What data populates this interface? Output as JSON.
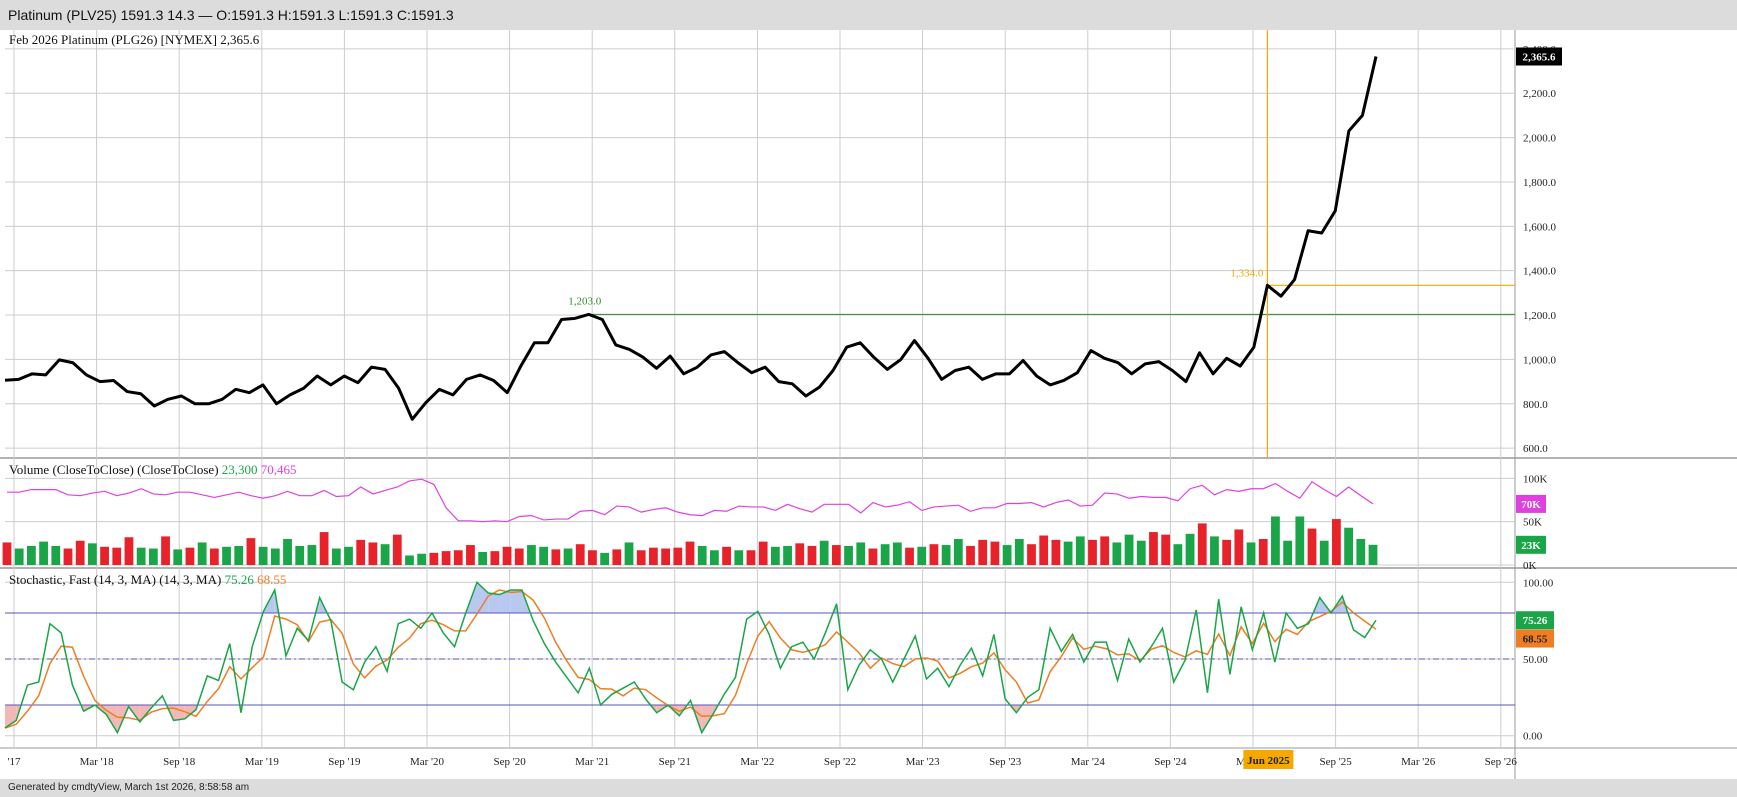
{
  "title_bar": "Platinum (PLV25) 1591.3 14.3 — O:1591.3 H:1591.3 L:1591.3 C:1591.3",
  "footer": "Generated by cmdtyView, March 1st 2026, 8:58:58 am",
  "colors": {
    "price_line": "#000000",
    "volume_up": "#1aa548",
    "volume_down": "#e8222a",
    "volume_ma": "#e040e0",
    "stoch_k": "#1aa548",
    "stoch_d": "#ef7d22",
    "stoch_overbought_fill": "#b8c8f0",
    "stoch_oversold_fill": "#f2b8b8",
    "gridline": "#cccccc",
    "crosshair": "#f6a800",
    "level_line": "#2e8b2e"
  },
  "chart_data": [
    {
      "type": "line",
      "title": "Feb 2026 Platinum (PLG26) [NYMEX] 2,365.6",
      "last_value_label": "2,365.6",
      "x_axis_labels": [
        "'17",
        "Mar '18",
        "Sep '18",
        "Mar '19",
        "Sep '19",
        "Mar '20",
        "Sep '20",
        "Mar '21",
        "Sep '21",
        "Mar '22",
        "Sep '22",
        "Mar '23",
        "Sep '23",
        "Mar '24",
        "Sep '24",
        "Mar '25",
        "Sep '25",
        "Mar '26",
        "Sep '26"
      ],
      "y_ticks": [
        "2,400.0",
        "2,200.0",
        "2,000.0",
        "1,800.0",
        "1,600.0",
        "1,400.0",
        "1,200.0",
        "1,000.0",
        "800.0",
        "600.0"
      ],
      "ylim": [
        560,
        2440
      ],
      "grid": true,
      "values": [
        906,
        910,
        935,
        930,
        998,
        985,
        930,
        900,
        905,
        855,
        845,
        790,
        820,
        835,
        800,
        800,
        820,
        865,
        850,
        885,
        800,
        840,
        870,
        925,
        885,
        925,
        895,
        965,
        955,
        870,
        730,
        805,
        865,
        840,
        910,
        930,
        905,
        850,
        970,
        1075,
        1075,
        1180,
        1185,
        1203,
        1180,
        1065,
        1045,
        1010,
        960,
        1015,
        935,
        965,
        1020,
        1035,
        985,
        940,
        965,
        900,
        890,
        835,
        875,
        950,
        1055,
        1075,
        1010,
        955,
        1000,
        1085,
        1005,
        910,
        950,
        965,
        910,
        935,
        935,
        995,
        925,
        885,
        905,
        940,
        1040,
        1005,
        985,
        935,
        980,
        990,
        950,
        900,
        1030,
        935,
        1005,
        970,
        1055,
        1334,
        1285,
        1360,
        1580,
        1570,
        1670,
        2030,
        2100,
        2365.6
      ],
      "annotations": [
        {
          "label": "1,203.0",
          "value": 1203,
          "note": "horizontal level line"
        },
        {
          "label": "1,334.0",
          "value": 1334,
          "note": "crosshair level at Jun 2025"
        }
      ],
      "crosshair_label": "Jun 2025"
    },
    {
      "type": "bar",
      "title": "Volume (CloseToClose) (CloseToClose)",
      "legend_values": [
        "23,300",
        "70,465"
      ],
      "y_ticks": [
        "100K",
        "50K",
        "0K"
      ],
      "ylim": [
        0,
        105000
      ],
      "last_value_labels": [
        "70K",
        "23K"
      ],
      "volume": [
        26000,
        19000,
        22000,
        27000,
        22000,
        19000,
        28000,
        25000,
        21000,
        20000,
        32000,
        20000,
        19000,
        33000,
        18000,
        20000,
        26000,
        19000,
        21000,
        22000,
        31000,
        21000,
        19000,
        30000,
        22000,
        23000,
        38000,
        19000,
        21000,
        29000,
        26000,
        24000,
        35000,
        11000,
        13000,
        14000,
        16000,
        17000,
        23000,
        15000,
        16000,
        21000,
        19000,
        23000,
        21000,
        18000,
        19000,
        24000,
        17000,
        14000,
        18000,
        26000,
        17000,
        20000,
        19000,
        20000,
        27000,
        22000,
        17000,
        21000,
        17000,
        17000,
        27000,
        21000,
        22000,
        25000,
        22000,
        28000,
        23000,
        22000,
        26000,
        19000,
        24000,
        26000,
        20000,
        21000,
        24000,
        23000,
        30000,
        22000,
        29000,
        27000,
        23000,
        30000,
        24000,
        34000,
        29000,
        27000,
        33000,
        29000,
        33000,
        26000,
        35000,
        28000,
        38000,
        35000,
        24000,
        36000,
        48000,
        33000,
        29000,
        41000,
        26000,
        30000,
        56000,
        28000,
        56000,
        42000,
        28000,
        53000,
        43000,
        30000,
        23300
      ],
      "volume_up": [
        false,
        true,
        true,
        true,
        true,
        false,
        false,
        true,
        false,
        false,
        false,
        true,
        true,
        false,
        true,
        false,
        true,
        false,
        true,
        true,
        false,
        true,
        true,
        true,
        true,
        true,
        false,
        true,
        true,
        false,
        false,
        true,
        false,
        true,
        true,
        false,
        false,
        false,
        false,
        true,
        false,
        false,
        false,
        true,
        true,
        false,
        true,
        false,
        false,
        true,
        false,
        true,
        false,
        false,
        false,
        false,
        false,
        true,
        true,
        false,
        true,
        false,
        false,
        true,
        true,
        false,
        false,
        true,
        false,
        true,
        true,
        false,
        true,
        true,
        false,
        true,
        false,
        true,
        true,
        false,
        false,
        false,
        true,
        true,
        false,
        false,
        false,
        true,
        true,
        false,
        false,
        true,
        true,
        true,
        false,
        false,
        true,
        true,
        false,
        true,
        false,
        false,
        true,
        false,
        true,
        true,
        true,
        false,
        true,
        false,
        true,
        true,
        true
      ],
      "volume_ma": [
        84000,
        84000,
        87000,
        87000,
        87000,
        81000,
        80000,
        83000,
        85000,
        80000,
        83000,
        88000,
        82000,
        81000,
        84000,
        84000,
        81000,
        78000,
        81000,
        84000,
        80000,
        77000,
        80000,
        85000,
        80000,
        80000,
        86000,
        79000,
        80000,
        90000,
        82000,
        86000,
        90000,
        97000,
        99000,
        93000,
        66000,
        51000,
        51000,
        50000,
        51000,
        50000,
        56000,
        57000,
        52000,
        53000,
        53000,
        62000,
        63000,
        58000,
        68000,
        67000,
        61000,
        64000,
        66000,
        61000,
        58000,
        57000,
        63000,
        62000,
        68000,
        67000,
        67000,
        63000,
        70000,
        65000,
        61000,
        70000,
        70000,
        70000,
        60000,
        72000,
        67000,
        69000,
        73000,
        63000,
        67000,
        68000,
        69000,
        62000,
        66000,
        66000,
        71000,
        71000,
        72000,
        67000,
        72000,
        75000,
        68000,
        69000,
        83000,
        82000,
        77000,
        79000,
        78000,
        78000,
        74000,
        88000,
        92000,
        81000,
        87000,
        85000,
        88000,
        88000,
        94000,
        85000,
        77000,
        96000,
        87000,
        79000,
        90000,
        80000,
        70465
      ]
    },
    {
      "type": "line",
      "title": "Stochastic, Fast (14, 3, MA) (14, 3, MA)",
      "legend_values": [
        "75.26",
        "68.55"
      ],
      "y_ticks": [
        "100.00",
        "50.00",
        "0.00"
      ],
      "ylim": [
        -8,
        108
      ],
      "reference_lines": [
        80,
        50,
        20
      ],
      "last_value_labels": [
        "75.26",
        "68.55"
      ],
      "series": [
        {
          "name": "%K",
          "values": [
            5,
            10,
            33,
            35,
            73,
            67,
            33,
            16,
            20,
            14,
            2,
            19,
            9,
            18,
            26,
            10,
            11,
            17,
            39,
            36,
            60,
            15,
            58,
            81,
            95,
            52,
            70,
            62,
            90,
            75,
            35,
            30,
            48,
            58,
            42,
            73,
            76,
            70,
            80,
            67,
            58,
            80,
            100,
            93,
            92,
            95,
            95,
            75,
            60,
            48,
            38,
            28,
            44,
            20,
            27,
            31,
            35,
            24,
            15,
            20,
            13,
            23,
            2,
            14,
            27,
            38,
            76,
            81,
            66,
            44,
            58,
            61,
            50,
            67,
            86,
            30,
            46,
            56,
            50,
            35,
            50,
            65,
            37,
            44,
            32,
            46,
            57,
            39,
            66,
            24,
            15,
            25,
            30,
            70,
            55,
            66,
            48,
            61,
            61,
            36,
            63,
            48,
            58,
            70,
            35,
            49,
            82,
            28,
            89,
            40,
            84,
            56,
            80,
            48,
            80,
            70,
            73,
            90,
            80,
            91,
            69,
            64,
            75.26
          ]
        },
        {
          "name": "%D",
          "values": null
        }
      ]
    }
  ]
}
